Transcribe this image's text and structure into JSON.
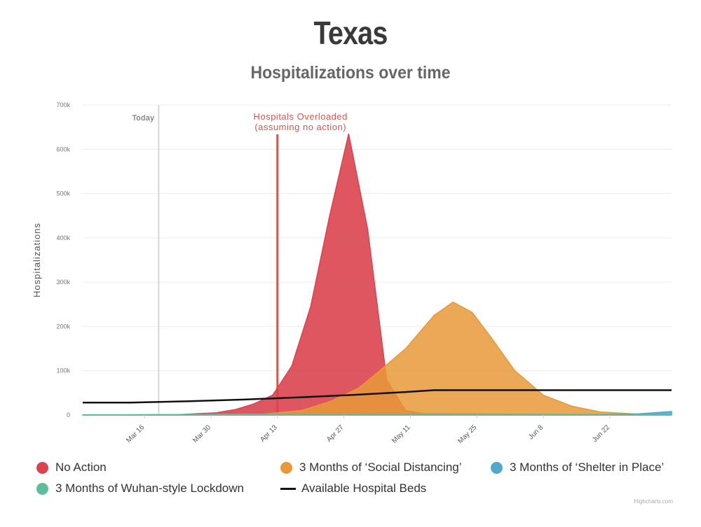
{
  "title": "Texas",
  "subtitle": "Hospitalizations over time",
  "credits": "Highcharts.com",
  "chart_data": {
    "type": "area",
    "title": "Texas",
    "subtitle": "Hospitalizations over time",
    "xlabel": "",
    "ylabel": "Hospitalizations",
    "ylim": [
      0,
      700000
    ],
    "yticks": [
      0,
      100000,
      200000,
      300000,
      400000,
      500000,
      600000,
      700000
    ],
    "ytick_labels": [
      "0",
      "100k",
      "200k",
      "300k",
      "400k",
      "500k",
      "600k",
      "700k"
    ],
    "xlim": [
      "2020-03-03",
      "2020-07-05"
    ],
    "xticks": [
      "2020-03-16",
      "2020-03-30",
      "2020-04-13",
      "2020-04-27",
      "2020-05-11",
      "2020-05-25",
      "2020-06-08",
      "2020-06-22"
    ],
    "xtick_labels": [
      "Mar 16",
      "Mar 30",
      "Apr 13",
      "Apr 27",
      "May 11",
      "May 25",
      "Jun 8",
      "Jun 22"
    ],
    "grid": true,
    "legend_position": "bottom",
    "plot_lines": [
      {
        "label": "Today",
        "x": "2020-03-19",
        "color": "#cccccc"
      },
      {
        "label": "Hospitals Overloaded\n(assuming no action)",
        "x": "2020-04-13",
        "color": "#d9534f"
      }
    ],
    "series": [
      {
        "name": "No Action",
        "kind": "area",
        "color": "#d9444f",
        "points": [
          [
            "2020-03-03",
            0
          ],
          [
            "2020-03-23",
            1000
          ],
          [
            "2020-03-31",
            5000
          ],
          [
            "2020-04-04",
            12000
          ],
          [
            "2020-04-08",
            25000
          ],
          [
            "2020-04-12",
            45000
          ],
          [
            "2020-04-16",
            110000
          ],
          [
            "2020-04-20",
            245000
          ],
          [
            "2020-04-24",
            450000
          ],
          [
            "2020-04-28",
            635000
          ],
          [
            "2020-05-02",
            420000
          ],
          [
            "2020-05-06",
            80000
          ],
          [
            "2020-05-10",
            10000
          ],
          [
            "2020-05-14",
            3000
          ],
          [
            "2020-07-05",
            0
          ]
        ]
      },
      {
        "name": "3 Months of 'Social Distancing'",
        "kind": "area",
        "color": "#e8993a",
        "points": [
          [
            "2020-03-03",
            0
          ],
          [
            "2020-04-10",
            2000
          ],
          [
            "2020-04-18",
            10000
          ],
          [
            "2020-04-24",
            30000
          ],
          [
            "2020-04-30",
            60000
          ],
          [
            "2020-05-04",
            95000
          ],
          [
            "2020-05-10",
            150000
          ],
          [
            "2020-05-16",
            225000
          ],
          [
            "2020-05-20",
            255000
          ],
          [
            "2020-05-24",
            232000
          ],
          [
            "2020-05-28",
            175000
          ],
          [
            "2020-06-02",
            100000
          ],
          [
            "2020-06-08",
            45000
          ],
          [
            "2020-06-14",
            20000
          ],
          [
            "2020-06-20",
            7000
          ],
          [
            "2020-06-28",
            2000
          ],
          [
            "2020-07-05",
            0
          ]
        ]
      },
      {
        "name": "3 Months of 'Shelter in Place'",
        "kind": "area",
        "color": "#4fa9cf",
        "points": [
          [
            "2020-03-03",
            500
          ],
          [
            "2020-06-20",
            800
          ],
          [
            "2020-06-28",
            2500
          ],
          [
            "2020-07-05",
            8000
          ]
        ]
      },
      {
        "name": "3 Months of Wuhan-style Lockdown",
        "kind": "area",
        "color": "#5cbf9a",
        "points": [
          [
            "2020-03-03",
            0
          ],
          [
            "2020-07-05",
            0
          ]
        ]
      },
      {
        "name": "Available Hospital Beds",
        "kind": "line",
        "color": "#111111",
        "points": [
          [
            "2020-03-03",
            28000
          ],
          [
            "2020-03-13",
            28000
          ],
          [
            "2020-03-25",
            31000
          ],
          [
            "2020-04-06",
            35000
          ],
          [
            "2020-04-18",
            40000
          ],
          [
            "2020-04-30",
            46000
          ],
          [
            "2020-05-10",
            52000
          ],
          [
            "2020-05-16",
            56000
          ],
          [
            "2020-06-01",
            56000
          ],
          [
            "2020-07-05",
            56000
          ]
        ]
      }
    ]
  },
  "legend": [
    {
      "label": "No Action",
      "color": "#d9444f",
      "marker": "dot"
    },
    {
      "label": "3 Months of ‘Social Distancing’",
      "color": "#e8993a",
      "marker": "dot"
    },
    {
      "label": "3 Months of ‘Shelter in Place’",
      "color": "#4fa9cf",
      "marker": "dot"
    },
    {
      "label": "3 Months of Wuhan-style Lockdown",
      "color": "#5cbf9a",
      "marker": "dot"
    },
    {
      "label": "Available Hospital Beds",
      "color": "#111111",
      "marker": "line"
    }
  ]
}
